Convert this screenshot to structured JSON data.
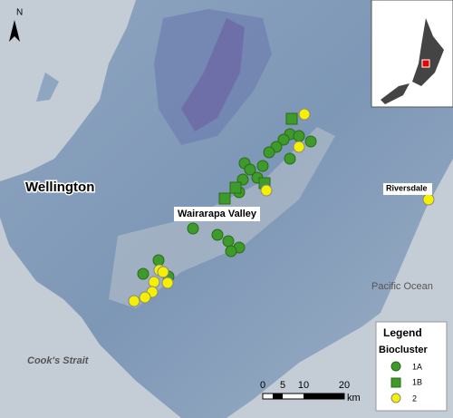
{
  "north": "N",
  "places": {
    "wellington": "Wellington",
    "valley": "Wairarapa Valley",
    "riversdale": "Riversdale",
    "ocean": "Pacific Ocean",
    "strait": "Cook's Strait"
  },
  "legend": {
    "title": "Legend",
    "subtitle": "Biocluster",
    "items": [
      "1A",
      "1B",
      "2"
    ]
  },
  "scale": {
    "ticks": [
      "0",
      "5",
      "10",
      "20"
    ],
    "unit": "km"
  }
}
